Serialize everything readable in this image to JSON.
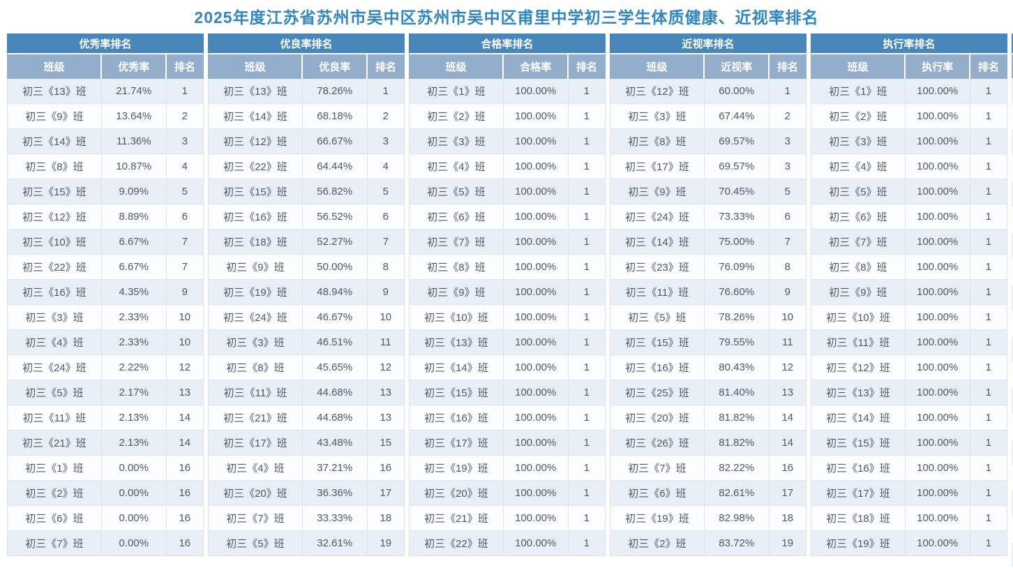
{
  "page": {
    "title": "2025年度江苏省苏州市吴中区苏州市吴中区甫里中学初三学生体质健康、近视率排名"
  },
  "colors": {
    "title_text": "#2e86c4",
    "table_title_bar": "#4787ba",
    "column_header": "#93aecb",
    "row_odd": "#e9eff7",
    "row_even": "#fcfdff",
    "cell_text": "#4a5a6a"
  },
  "chart_data": [
    {
      "type": "table",
      "title": "优秀率排名",
      "columns": [
        "班级",
        "优秀率",
        "排名"
      ],
      "rows": [
        [
          "初三《13》班",
          "21.74%",
          "1"
        ],
        [
          "初三《9》班",
          "13.64%",
          "2"
        ],
        [
          "初三《14》班",
          "11.36%",
          "3"
        ],
        [
          "初三《8》班",
          "10.87%",
          "4"
        ],
        [
          "初三《15》班",
          "9.09%",
          "5"
        ],
        [
          "初三《12》班",
          "8.89%",
          "6"
        ],
        [
          "初三《10》班",
          "6.67%",
          "7"
        ],
        [
          "初三《22》班",
          "6.67%",
          "7"
        ],
        [
          "初三《16》班",
          "4.35%",
          "9"
        ],
        [
          "初三《3》班",
          "2.33%",
          "10"
        ],
        [
          "初三《4》班",
          "2.33%",
          "10"
        ],
        [
          "初三《24》班",
          "2.22%",
          "12"
        ],
        [
          "初三《5》班",
          "2.17%",
          "13"
        ],
        [
          "初三《11》班",
          "2.13%",
          "14"
        ],
        [
          "初三《21》班",
          "2.13%",
          "14"
        ],
        [
          "初三《1》班",
          "0.00%",
          "16"
        ],
        [
          "初三《2》班",
          "0.00%",
          "16"
        ],
        [
          "初三《6》班",
          "0.00%",
          "16"
        ],
        [
          "初三《7》班",
          "0.00%",
          "16"
        ]
      ]
    },
    {
      "type": "table",
      "title": "优良率排名",
      "columns": [
        "班级",
        "优良率",
        "排名"
      ],
      "rows": [
        [
          "初三《13》班",
          "78.26%",
          "1"
        ],
        [
          "初三《14》班",
          "68.18%",
          "2"
        ],
        [
          "初三《12》班",
          "66.67%",
          "3"
        ],
        [
          "初三《22》班",
          "64.44%",
          "4"
        ],
        [
          "初三《15》班",
          "56.82%",
          "5"
        ],
        [
          "初三《16》班",
          "56.52%",
          "6"
        ],
        [
          "初三《18》班",
          "52.27%",
          "7"
        ],
        [
          "初三《9》班",
          "50.00%",
          "8"
        ],
        [
          "初三《19》班",
          "48.94%",
          "9"
        ],
        [
          "初三《24》班",
          "46.67%",
          "10"
        ],
        [
          "初三《3》班",
          "46.51%",
          "11"
        ],
        [
          "初三《8》班",
          "45.65%",
          "12"
        ],
        [
          "初三《11》班",
          "44.68%",
          "13"
        ],
        [
          "初三《21》班",
          "44.68%",
          "13"
        ],
        [
          "初三《17》班",
          "43.48%",
          "15"
        ],
        [
          "初三《4》班",
          "37.21%",
          "16"
        ],
        [
          "初三《20》班",
          "36.36%",
          "17"
        ],
        [
          "初三《7》班",
          "33.33%",
          "18"
        ],
        [
          "初三《5》班",
          "32.61%",
          "19"
        ]
      ]
    },
    {
      "type": "table",
      "title": "合格率排名",
      "columns": [
        "班级",
        "合格率",
        "排名"
      ],
      "rows": [
        [
          "初三《1》班",
          "100.00%",
          "1"
        ],
        [
          "初三《2》班",
          "100.00%",
          "1"
        ],
        [
          "初三《3》班",
          "100.00%",
          "1"
        ],
        [
          "初三《4》班",
          "100.00%",
          "1"
        ],
        [
          "初三《5》班",
          "100.00%",
          "1"
        ],
        [
          "初三《6》班",
          "100.00%",
          "1"
        ],
        [
          "初三《7》班",
          "100.00%",
          "1"
        ],
        [
          "初三《8》班",
          "100.00%",
          "1"
        ],
        [
          "初三《9》班",
          "100.00%",
          "1"
        ],
        [
          "初三《10》班",
          "100.00%",
          "1"
        ],
        [
          "初三《13》班",
          "100.00%",
          "1"
        ],
        [
          "初三《14》班",
          "100.00%",
          "1"
        ],
        [
          "初三《15》班",
          "100.00%",
          "1"
        ],
        [
          "初三《16》班",
          "100.00%",
          "1"
        ],
        [
          "初三《17》班",
          "100.00%",
          "1"
        ],
        [
          "初三《19》班",
          "100.00%",
          "1"
        ],
        [
          "初三《20》班",
          "100.00%",
          "1"
        ],
        [
          "初三《21》班",
          "100.00%",
          "1"
        ],
        [
          "初三《22》班",
          "100.00%",
          "1"
        ]
      ]
    },
    {
      "type": "table",
      "title": "近视率排名",
      "columns": [
        "班级",
        "近视率",
        "排名"
      ],
      "rows": [
        [
          "初三《12》班",
          "60.00%",
          "1"
        ],
        [
          "初三《3》班",
          "67.44%",
          "2"
        ],
        [
          "初三《8》班",
          "69.57%",
          "3"
        ],
        [
          "初三《17》班",
          "69.57%",
          "3"
        ],
        [
          "初三《9》班",
          "70.45%",
          "5"
        ],
        [
          "初三《24》班",
          "73.33%",
          "6"
        ],
        [
          "初三《14》班",
          "75.00%",
          "7"
        ],
        [
          "初三《23》班",
          "76.09%",
          "8"
        ],
        [
          "初三《11》班",
          "76.60%",
          "9"
        ],
        [
          "初三《5》班",
          "78.26%",
          "10"
        ],
        [
          "初三《15》班",
          "79.55%",
          "11"
        ],
        [
          "初三《16》班",
          "80.43%",
          "12"
        ],
        [
          "初三《25》班",
          "81.40%",
          "13"
        ],
        [
          "初三《20》班",
          "81.82%",
          "14"
        ],
        [
          "初三《26》班",
          "81.82%",
          "14"
        ],
        [
          "初三《7》班",
          "82.22%",
          "16"
        ],
        [
          "初三《6》班",
          "82.61%",
          "17"
        ],
        [
          "初三《19》班",
          "82.98%",
          "18"
        ],
        [
          "初三《2》班",
          "83.72%",
          "19"
        ]
      ]
    },
    {
      "type": "table",
      "title": "执行率排名",
      "columns": [
        "班级",
        "执行率",
        "排名"
      ],
      "rows": [
        [
          "初三《1》班",
          "100.00%",
          "1"
        ],
        [
          "初三《2》班",
          "100.00%",
          "1"
        ],
        [
          "初三《3》班",
          "100.00%",
          "1"
        ],
        [
          "初三《4》班",
          "100.00%",
          "1"
        ],
        [
          "初三《5》班",
          "100.00%",
          "1"
        ],
        [
          "初三《6》班",
          "100.00%",
          "1"
        ],
        [
          "初三《7》班",
          "100.00%",
          "1"
        ],
        [
          "初三《8》班",
          "100.00%",
          "1"
        ],
        [
          "初三《9》班",
          "100.00%",
          "1"
        ],
        [
          "初三《10》班",
          "100.00%",
          "1"
        ],
        [
          "初三《11》班",
          "100.00%",
          "1"
        ],
        [
          "初三《12》班",
          "100.00%",
          "1"
        ],
        [
          "初三《13》班",
          "100.00%",
          "1"
        ],
        [
          "初三《14》班",
          "100.00%",
          "1"
        ],
        [
          "初三《15》班",
          "100.00%",
          "1"
        ],
        [
          "初三《16》班",
          "100.00%",
          "1"
        ],
        [
          "初三《17》班",
          "100.00%",
          "1"
        ],
        [
          "初三《18》班",
          "100.00%",
          "1"
        ],
        [
          "初三《19》班",
          "100.00%",
          "1"
        ]
      ]
    }
  ]
}
